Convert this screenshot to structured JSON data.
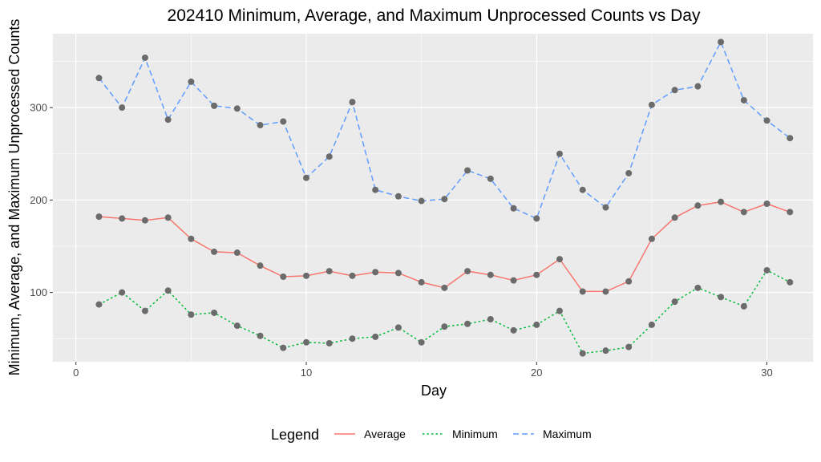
{
  "chart_data": {
    "type": "line",
    "title": "202410 Minimum, Average, and Maximum Unprocessed Counts vs Day",
    "xlabel": "Day",
    "ylabel": "Minimum, Average, and Maximum Unprocessed Counts",
    "xlim": [
      -1,
      32
    ],
    "ylim": [
      25,
      380
    ],
    "x_ticks": [
      0,
      10,
      20,
      30
    ],
    "y_ticks": [
      100,
      200,
      300
    ],
    "grid": true,
    "legend_title": "Legend",
    "legend_position": "bottom",
    "point_color": "#6b6b6b",
    "x": [
      1,
      2,
      3,
      4,
      5,
      6,
      7,
      8,
      9,
      10,
      11,
      12,
      13,
      14,
      15,
      16,
      17,
      18,
      19,
      20,
      21,
      22,
      23,
      24,
      25,
      26,
      27,
      28,
      29,
      30,
      31
    ],
    "series": [
      {
        "name": "Average",
        "color": "#F8766D",
        "dash": "solid",
        "values": [
          182,
          180,
          178,
          181,
          158,
          144,
          143,
          129,
          117,
          118,
          123,
          118,
          122,
          121,
          111,
          105,
          123,
          119,
          113,
          119,
          136,
          101,
          101,
          112,
          158,
          181,
          194,
          198,
          187,
          196,
          187
        ]
      },
      {
        "name": "Minimum",
        "color": "#00BA38",
        "dash": "dotted",
        "values": [
          87,
          100,
          80,
          102,
          76,
          78,
          64,
          53,
          40,
          46,
          45,
          50,
          52,
          62,
          46,
          63,
          66,
          71,
          59,
          65,
          80,
          34,
          37,
          41,
          65,
          90,
          105,
          95,
          85,
          124,
          111
        ]
      },
      {
        "name": "Maximum",
        "color": "#619CFF",
        "dash": "dashed",
        "values": [
          332,
          300,
          354,
          287,
          328,
          302,
          299,
          281,
          285,
          224,
          247,
          306,
          211,
          204,
          199,
          201,
          232,
          223,
          191,
          180,
          250,
          211,
          192,
          229,
          303,
          319,
          323,
          371,
          308,
          286,
          267
        ]
      }
    ]
  }
}
